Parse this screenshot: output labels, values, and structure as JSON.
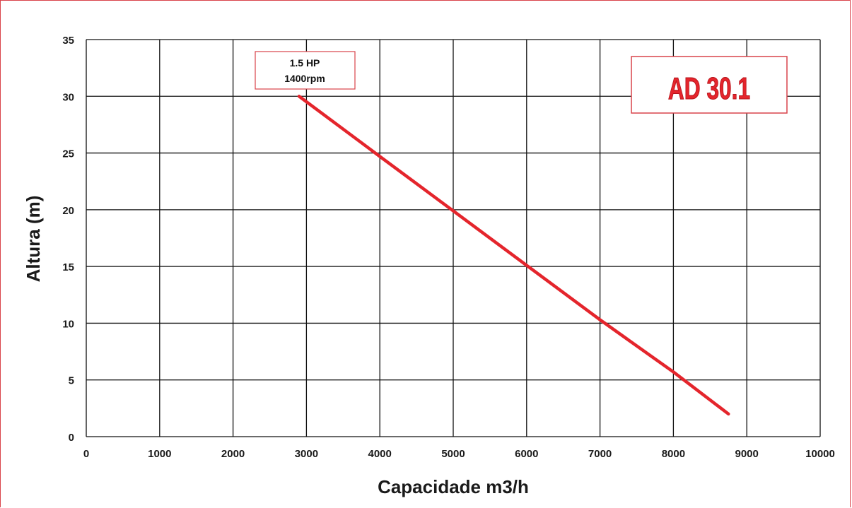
{
  "chart_data": {
    "type": "line",
    "title": "",
    "xlabel": "Capacidade m3/h",
    "ylabel": "Altura (m)",
    "xlim": [
      0,
      10000
    ],
    "ylim": [
      0,
      35
    ],
    "x_ticks": [
      0,
      1000,
      2000,
      3000,
      4000,
      5000,
      6000,
      7000,
      8000,
      9000,
      10000
    ],
    "y_ticks": [
      0,
      5,
      10,
      15,
      20,
      25,
      30,
      35
    ],
    "grid": true,
    "series": [
      {
        "x": [
          2900,
          4000,
          5000,
          6000,
          7000,
          8000,
          8750
        ],
        "y": [
          30,
          24.7,
          19.9,
          15.1,
          10.3,
          5.7,
          2
        ],
        "color": "#e4252c"
      }
    ],
    "annotations": {
      "curve_label": [
        "1.5 HP",
        "1400rpm"
      ],
      "model": "AD 30.1"
    }
  }
}
